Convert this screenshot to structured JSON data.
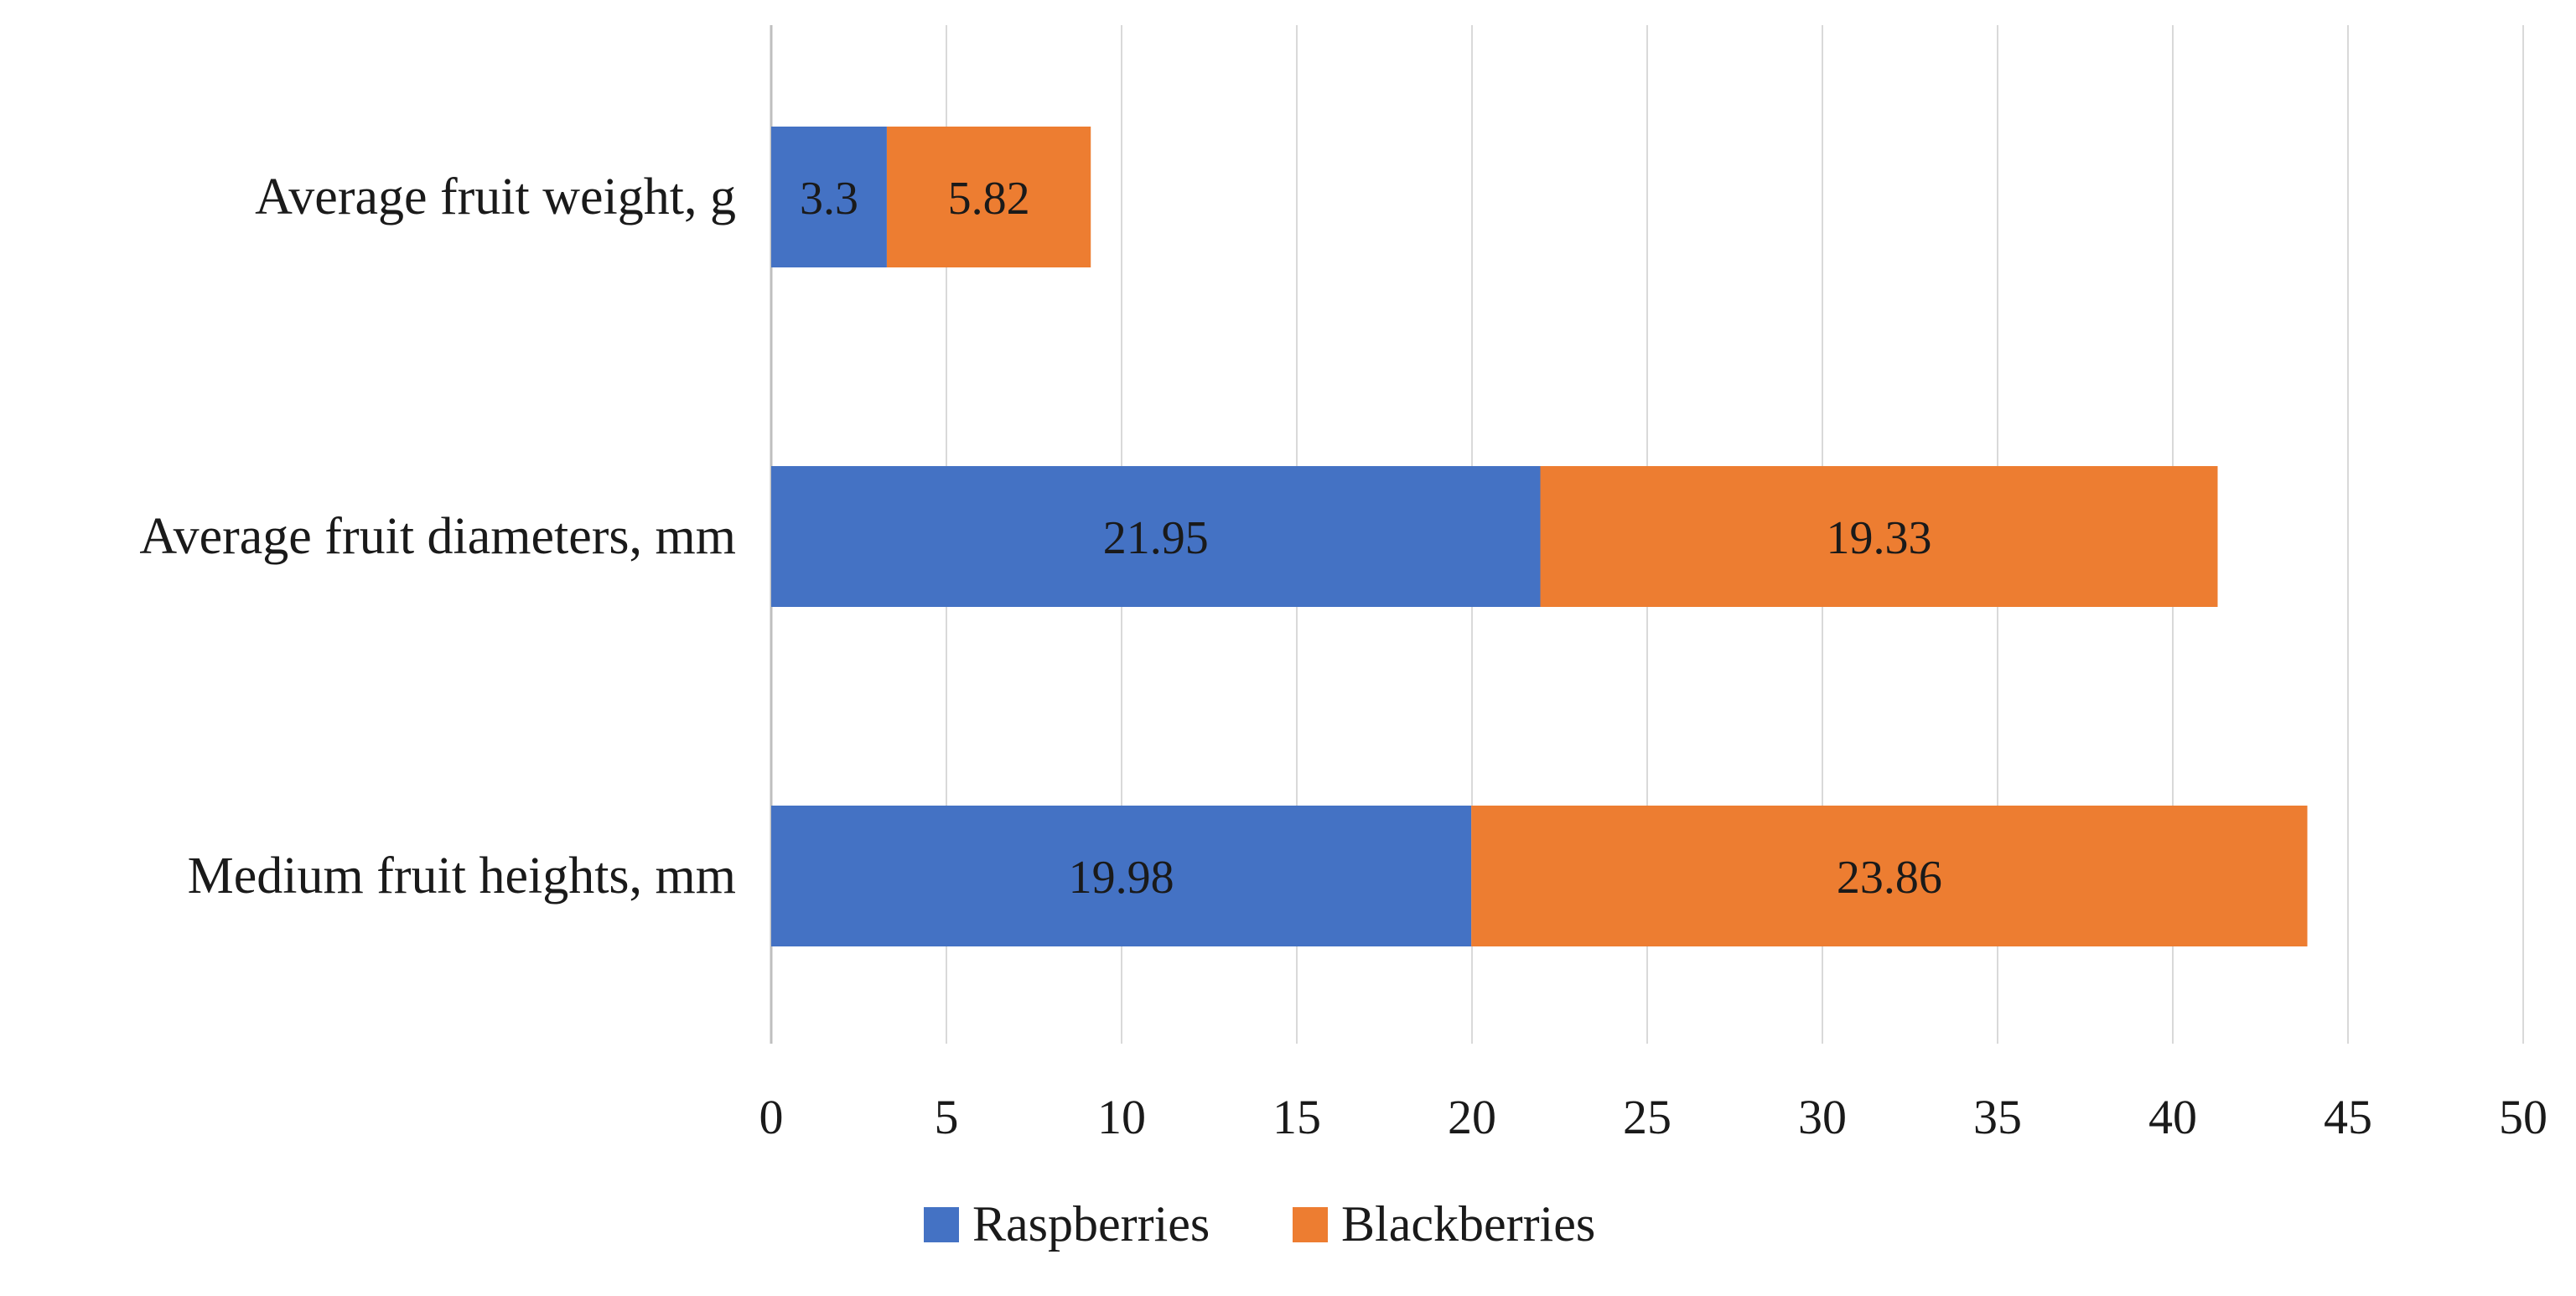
{
  "chart_data": {
    "type": "bar",
    "orientation": "horizontal",
    "stacked": true,
    "title": "",
    "xlabel": "",
    "ylabel": "",
    "xlim": [
      0,
      50
    ],
    "x_ticks": [
      0,
      5,
      10,
      15,
      20,
      25,
      30,
      35,
      40,
      45,
      50
    ],
    "grid": true,
    "legend_position": "bottom-center",
    "categories": [
      "Average fruit weight, g",
      "Average fruit diameters, mm",
      "Medium fruit heights, mm"
    ],
    "series": [
      {
        "name": "Raspberries",
        "color": "#4472C4",
        "values": [
          3.3,
          21.95,
          19.98
        ],
        "labels": [
          "3.3",
          "21.95",
          "19.98"
        ]
      },
      {
        "name": "Blackberries",
        "color": "#ED7D31",
        "values": [
          5.82,
          19.33,
          23.86
        ],
        "labels": [
          "5.82",
          "19.33",
          "23.86"
        ]
      }
    ]
  }
}
